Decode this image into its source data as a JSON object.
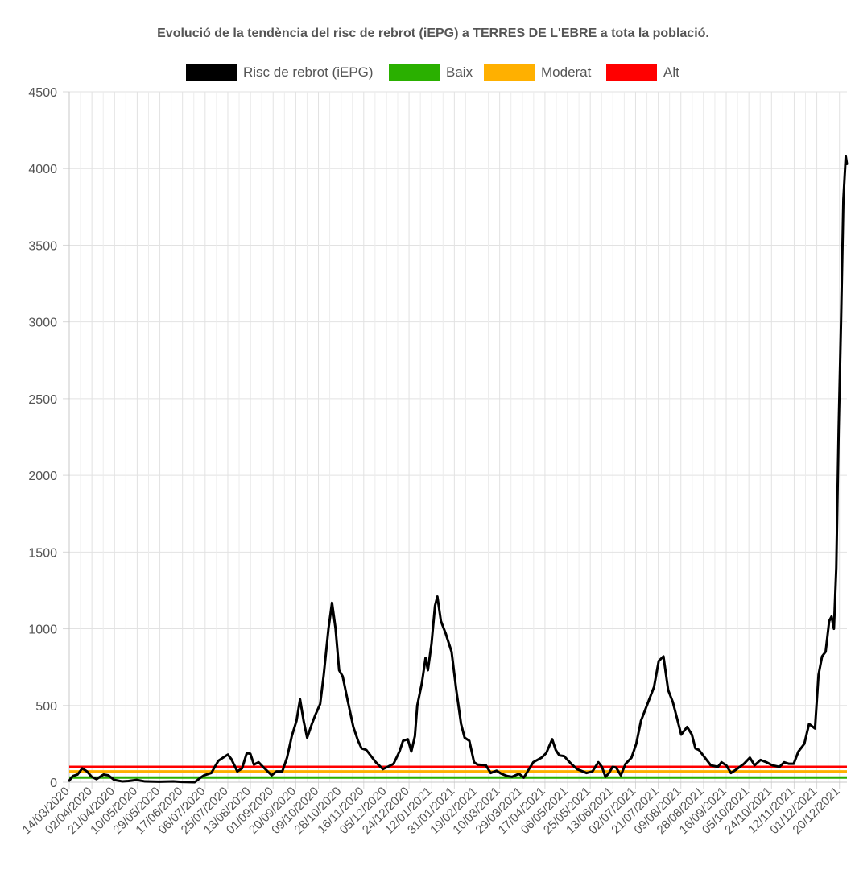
{
  "chart_data": {
    "type": "line",
    "title": "Evolució de la tendència del risc de rebrot (iEPG) a TERRES DE L'EBRE a tota la població.",
    "legend": [
      {
        "label": "Risc de rebrot (iEPG)",
        "color": "#000000"
      },
      {
        "label": "Baix",
        "color": "#2ab000"
      },
      {
        "label": "Moderat",
        "color": "#ffb000"
      },
      {
        "label": "Alt",
        "color": "#ff0000"
      }
    ],
    "legend_position": "top-center",
    "grid": true,
    "ylim": [
      0,
      4500
    ],
    "yticks": [
      0,
      500,
      1000,
      1500,
      2000,
      2500,
      3000,
      3500,
      4000,
      4500
    ],
    "xticks": [
      "14/03/2020",
      "02/04/2020",
      "21/04/2020",
      "10/05/2020",
      "29/05/2020",
      "17/06/2020",
      "06/07/2020",
      "25/07/2020",
      "13/08/2020",
      "01/09/2020",
      "20/09/2020",
      "09/10/2020",
      "28/10/2020",
      "16/11/2020",
      "05/12/2020",
      "24/12/2020",
      "12/01/2021",
      "31/01/2021",
      "19/02/2021",
      "10/03/2021",
      "29/03/2021",
      "17/04/2021",
      "06/05/2021",
      "25/05/2021",
      "13/06/2021",
      "02/07/2021",
      "21/07/2021",
      "09/08/2021",
      "28/08/2021",
      "16/09/2021",
      "05/10/2021",
      "24/10/2021",
      "12/11/2021",
      "01/12/2021",
      "20/12/2021"
    ],
    "thresholds": [
      {
        "name": "Baix",
        "value": 30,
        "color": "#2ab000"
      },
      {
        "name": "Moderat",
        "value": 70,
        "color": "#ffb000"
      },
      {
        "name": "Alt",
        "value": 100,
        "color": "#ff0000"
      }
    ],
    "series": [
      {
        "name": "Risc de rebrot (iEPG)",
        "color": "#000000",
        "x_start": "14/03/2020",
        "x_end": "31/12/2021",
        "points": [
          [
            "14/03/2020",
            10
          ],
          [
            "17/03/2020",
            40
          ],
          [
            "21/03/2020",
            50
          ],
          [
            "25/03/2020",
            90
          ],
          [
            "29/03/2020",
            70
          ],
          [
            "02/04/2020",
            35
          ],
          [
            "06/04/2020",
            20
          ],
          [
            "12/04/2020",
            50
          ],
          [
            "16/04/2020",
            45
          ],
          [
            "21/04/2020",
            15
          ],
          [
            "28/04/2020",
            5
          ],
          [
            "03/05/2020",
            8
          ],
          [
            "10/05/2020",
            15
          ],
          [
            "17/05/2020",
            5
          ],
          [
            "29/05/2020",
            3
          ],
          [
            "10/06/2020",
            5
          ],
          [
            "17/06/2020",
            2
          ],
          [
            "28/06/2020",
            0
          ],
          [
            "03/07/2020",
            30
          ],
          [
            "06/07/2020",
            45
          ],
          [
            "12/07/2020",
            60
          ],
          [
            "18/07/2020",
            140
          ],
          [
            "22/07/2020",
            160
          ],
          [
            "26/07/2020",
            180
          ],
          [
            "29/07/2020",
            150
          ],
          [
            "03/08/2020",
            70
          ],
          [
            "07/08/2020",
            90
          ],
          [
            "11/08/2020",
            190
          ],
          [
            "14/08/2020",
            185
          ],
          [
            "17/08/2020",
            115
          ],
          [
            "21/08/2020",
            130
          ],
          [
            "26/08/2020",
            90
          ],
          [
            "01/09/2020",
            45
          ],
          [
            "05/09/2020",
            70
          ],
          [
            "10/09/2020",
            70
          ],
          [
            "14/09/2020",
            160
          ],
          [
            "18/09/2020",
            300
          ],
          [
            "22/09/2020",
            400
          ],
          [
            "25/09/2020",
            540
          ],
          [
            "28/09/2020",
            400
          ],
          [
            "01/10/2020",
            290
          ],
          [
            "05/10/2020",
            380
          ],
          [
            "08/10/2020",
            440
          ],
          [
            "12/10/2020",
            510
          ],
          [
            "15/10/2020",
            700
          ],
          [
            "19/10/2020",
            1000
          ],
          [
            "22/10/2020",
            1170
          ],
          [
            "25/10/2020",
            1000
          ],
          [
            "28/10/2020",
            730
          ],
          [
            "31/10/2020",
            690
          ],
          [
            "04/11/2020",
            540
          ],
          [
            "09/11/2020",
            360
          ],
          [
            "13/11/2020",
            270
          ],
          [
            "16/11/2020",
            220
          ],
          [
            "20/11/2020",
            210
          ],
          [
            "24/11/2020",
            170
          ],
          [
            "28/11/2020",
            130
          ],
          [
            "04/12/2020",
            85
          ],
          [
            "08/12/2020",
            100
          ],
          [
            "13/12/2020",
            120
          ],
          [
            "18/12/2020",
            200
          ],
          [
            "21/12/2020",
            270
          ],
          [
            "25/12/2020",
            280
          ],
          [
            "28/12/2020",
            200
          ],
          [
            "31/12/2020",
            300
          ],
          [
            "02/01/2021",
            500
          ],
          [
            "06/01/2021",
            650
          ],
          [
            "09/01/2021",
            810
          ],
          [
            "11/01/2021",
            730
          ],
          [
            "14/01/2021",
            900
          ],
          [
            "17/01/2021",
            1150
          ],
          [
            "19/01/2021",
            1210
          ],
          [
            "22/01/2021",
            1050
          ],
          [
            "26/01/2021",
            970
          ],
          [
            "31/01/2021",
            850
          ],
          [
            "04/02/2021",
            600
          ],
          [
            "08/02/2021",
            380
          ],
          [
            "11/02/2021",
            290
          ],
          [
            "15/02/2021",
            270
          ],
          [
            "19/02/2021",
            130
          ],
          [
            "22/02/2021",
            115
          ],
          [
            "01/03/2021",
            110
          ],
          [
            "05/03/2021",
            60
          ],
          [
            "10/03/2021",
            75
          ],
          [
            "14/03/2021",
            55
          ],
          [
            "19/03/2021",
            40
          ],
          [
            "23/03/2021",
            35
          ],
          [
            "29/03/2021",
            55
          ],
          [
            "02/04/2021",
            30
          ],
          [
            "06/04/2021",
            80
          ],
          [
            "10/04/2021",
            130
          ],
          [
            "17/04/2021",
            160
          ],
          [
            "21/04/2021",
            190
          ],
          [
            "26/04/2021",
            280
          ],
          [
            "29/04/2021",
            210
          ],
          [
            "02/05/2021",
            175
          ],
          [
            "06/05/2021",
            170
          ],
          [
            "12/05/2021",
            120
          ],
          [
            "17/05/2021",
            85
          ],
          [
            "25/05/2021",
            60
          ],
          [
            "30/05/2021",
            70
          ],
          [
            "04/06/2021",
            130
          ],
          [
            "07/06/2021",
            100
          ],
          [
            "10/06/2021",
            35
          ],
          [
            "13/06/2021",
            60
          ],
          [
            "16/06/2021",
            100
          ],
          [
            "19/06/2021",
            95
          ],
          [
            "23/06/2021",
            45
          ],
          [
            "27/06/2021",
            120
          ],
          [
            "02/07/2021",
            160
          ],
          [
            "06/07/2021",
            250
          ],
          [
            "10/07/2021",
            400
          ],
          [
            "14/07/2021",
            480
          ],
          [
            "18/07/2021",
            560
          ],
          [
            "21/07/2021",
            620
          ],
          [
            "25/07/2021",
            790
          ],
          [
            "29/07/2021",
            820
          ],
          [
            "02/08/2021",
            600
          ],
          [
            "06/08/2021",
            520
          ],
          [
            "09/08/2021",
            430
          ],
          [
            "13/08/2021",
            310
          ],
          [
            "18/08/2021",
            360
          ],
          [
            "22/08/2021",
            310
          ],
          [
            "25/08/2021",
            220
          ],
          [
            "28/08/2021",
            210
          ],
          [
            "02/09/2021",
            160
          ],
          [
            "07/09/2021",
            110
          ],
          [
            "13/09/2021",
            100
          ],
          [
            "16/09/2021",
            130
          ],
          [
            "20/09/2021",
            110
          ],
          [
            "24/09/2021",
            60
          ],
          [
            "28/09/2021",
            80
          ],
          [
            "05/10/2021",
            120
          ],
          [
            "10/10/2021",
            160
          ],
          [
            "14/10/2021",
            110
          ],
          [
            "19/10/2021",
            145
          ],
          [
            "24/10/2021",
            130
          ],
          [
            "29/10/2021",
            110
          ],
          [
            "04/11/2021",
            100
          ],
          [
            "08/11/2021",
            130
          ],
          [
            "12/11/2021",
            120
          ],
          [
            "16/11/2021",
            120
          ],
          [
            "20/11/2021",
            200
          ],
          [
            "25/11/2021",
            250
          ],
          [
            "29/11/2021",
            380
          ],
          [
            "04/12/2021",
            350
          ],
          [
            "07/12/2021",
            700
          ],
          [
            "10/12/2021",
            820
          ],
          [
            "13/12/2021",
            850
          ],
          [
            "16/12/2021",
            1050
          ],
          [
            "18/12/2021",
            1080
          ],
          [
            "20/12/2021",
            1000
          ],
          [
            "22/12/2021",
            1400
          ],
          [
            "24/12/2021",
            2300
          ],
          [
            "26/12/2021",
            3000
          ],
          [
            "28/12/2021",
            3800
          ],
          [
            "30/12/2021",
            4080
          ],
          [
            "31/12/2021",
            4030
          ]
        ]
      }
    ]
  }
}
